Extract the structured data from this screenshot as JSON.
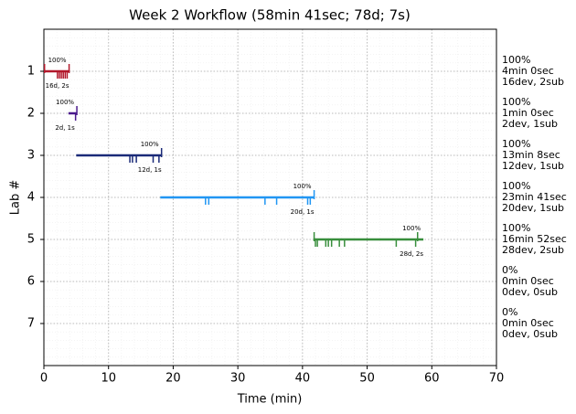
{
  "chart_data": {
    "type": "timeline",
    "title": "Week 2 Workflow (58min 41sec; 78d; 7s)",
    "x_label": "Time (min)",
    "y_label": "Lab #",
    "xlim": [
      0,
      70
    ],
    "xticks": [
      0,
      10,
      20,
      30,
      40,
      50,
      60,
      70
    ],
    "ylim": [
      0,
      8
    ],
    "y_inverted": true,
    "yticks": [
      1,
      2,
      3,
      4,
      5,
      6,
      7
    ],
    "grid": true,
    "labs": [
      {
        "color": "#b2182b",
        "start": 0,
        "end": 3.9,
        "devs": [
          2.1,
          2.4,
          2.7,
          3.0,
          3.3,
          3.6
        ],
        "subs": [
          0.1,
          3.9
        ],
        "score_label": "100%",
        "count_label": "16d, 2s",
        "summary": [
          "100%",
          "4min 0sec",
          "16dev, 2sub"
        ]
      },
      {
        "color": "#4b1a8c",
        "start": 3.8,
        "end": 5.1,
        "devs": [
          4.9
        ],
        "subs": [
          5.1
        ],
        "score_label": "100%",
        "count_label": "2d, 1s",
        "summary": [
          "100%",
          "1min 0sec",
          "2dev, 1sub"
        ]
      },
      {
        "color": "#1a2a78",
        "start": 5,
        "end": 18.2,
        "devs": [
          13.3,
          13.7,
          14.3,
          16.9,
          17.8
        ],
        "subs": [
          18.2
        ],
        "score_label": "100%",
        "count_label": "12d, 1s",
        "summary": [
          "100%",
          "13min 8sec",
          "12dev, 1sub"
        ]
      },
      {
        "color": "#2196f3",
        "start": 18,
        "end": 41.8,
        "devs": [
          25.0,
          25.5,
          34.2,
          36.0,
          40.8,
          41.2
        ],
        "subs": [
          41.8
        ],
        "score_label": "100%",
        "count_label": "20d, 1s",
        "summary": [
          "100%",
          "23min 41sec",
          "20dev, 1sub"
        ]
      },
      {
        "color": "#388e3c",
        "start": 41.7,
        "end": 58.7,
        "devs": [
          42.0,
          42.3,
          43.6,
          44.0,
          44.5,
          45.7,
          46.5,
          54.5,
          57.5
        ],
        "subs": [
          41.8,
          57.8
        ],
        "score_label": "100%",
        "count_label": "28d, 2s",
        "summary": [
          "100%",
          "16min 52sec",
          "28dev, 2sub"
        ]
      },
      {
        "color": "#e65100",
        "summary": [
          "0%",
          "0min 0sec",
          "0dev, 0sub"
        ]
      },
      {
        "color": "#000000",
        "summary": [
          "0%",
          "0min 0sec",
          "0dev, 0sub"
        ]
      }
    ]
  }
}
